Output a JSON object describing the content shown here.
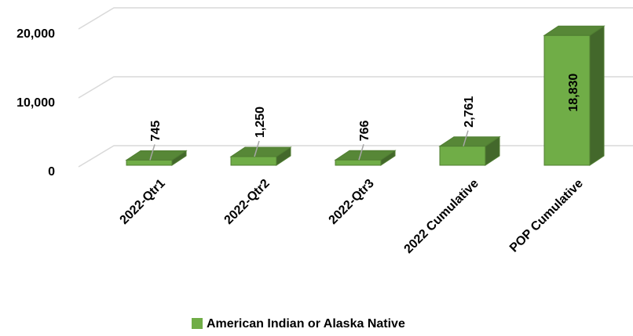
{
  "chart_data": {
    "type": "bar3d",
    "categories": [
      "2022-Qtr1",
      "2022-Qtr2",
      "2022-Qtr3",
      "2022 Cumulative",
      "POP Cumulative"
    ],
    "series": [
      {
        "name": "American Indian or Alaska Native",
        "color": "#70ad47",
        "values": [
          745,
          1250,
          766,
          2761,
          18830
        ],
        "value_labels": [
          "745",
          "1,250",
          "766",
          "2,761",
          "18,830"
        ]
      }
    ],
    "ylim": [
      0,
      20000
    ],
    "yticks": [
      0,
      {
        "value": 10000,
        "label": "10,000"
      },
      {
        "value": 20000,
        "label": "20,000"
      }
    ],
    "grid": true,
    "legend": "bottom"
  }
}
